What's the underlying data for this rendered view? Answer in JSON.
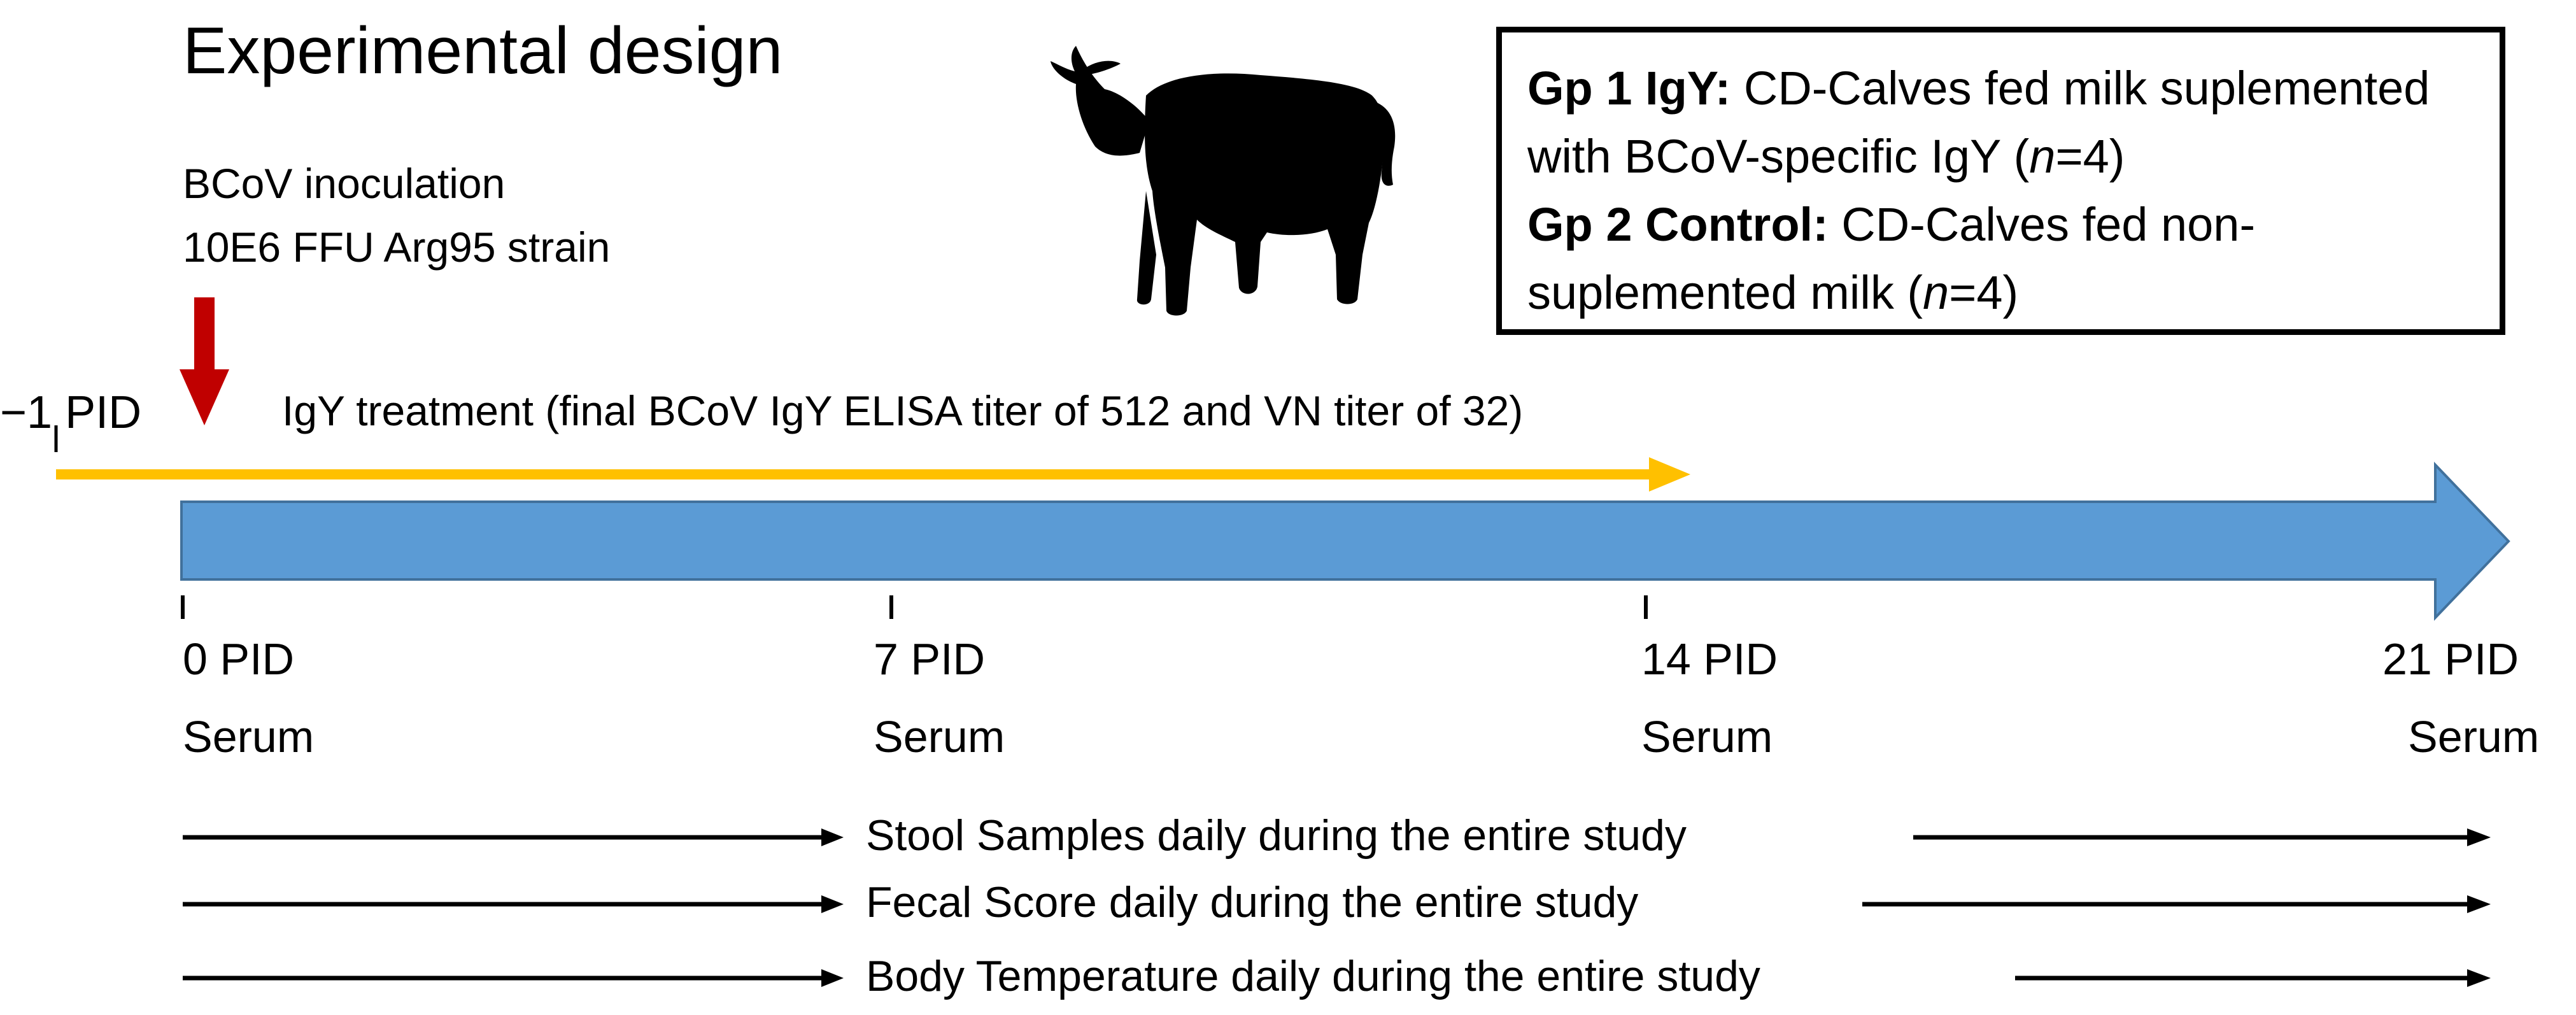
{
  "title": "Experimental design",
  "inoculation": {
    "line1": "BCoV inoculation",
    "line2": "10E6 FFU Arg95 strain"
  },
  "groups": {
    "gp1_label": "Gp 1 IgY:",
    "gp1_text_a": "CD-Calves fed milk suplemented",
    "gp1_text_b": "with BCoV-specific IgY (",
    "gp1_n": "n",
    "gp1_count": "=4)",
    "gp2_label": "Gp 2 Control:",
    "gp2_text_a": "CD-Calves fed non-",
    "gp2_text_b": "suplemented milk (",
    "gp2_n": "n",
    "gp2_count": "=4)"
  },
  "pre_day_label": "−1 PID",
  "igy_treatment": "IgY treatment (final BCoV IgY ELISA titer of 512 and VN titer of 32)",
  "timepoints": [
    {
      "label": "0 PID",
      "sample": "Serum"
    },
    {
      "label": "7 PID",
      "sample": "Serum"
    },
    {
      "label": "14 PID",
      "sample": "Serum"
    },
    {
      "label": "21 PID",
      "sample": "Serum"
    }
  ],
  "daily_measures": [
    "Stool Samples daily during the entire study",
    "Fecal Score daily during the entire study",
    "Body Temperature daily during the entire study"
  ],
  "colors": {
    "timeline_blue": "#5b9bd5",
    "igy_arrow": "#ffc000",
    "inoculation_arrow": "#c00000"
  },
  "icons": [
    "calf-silhouette-icon"
  ]
}
